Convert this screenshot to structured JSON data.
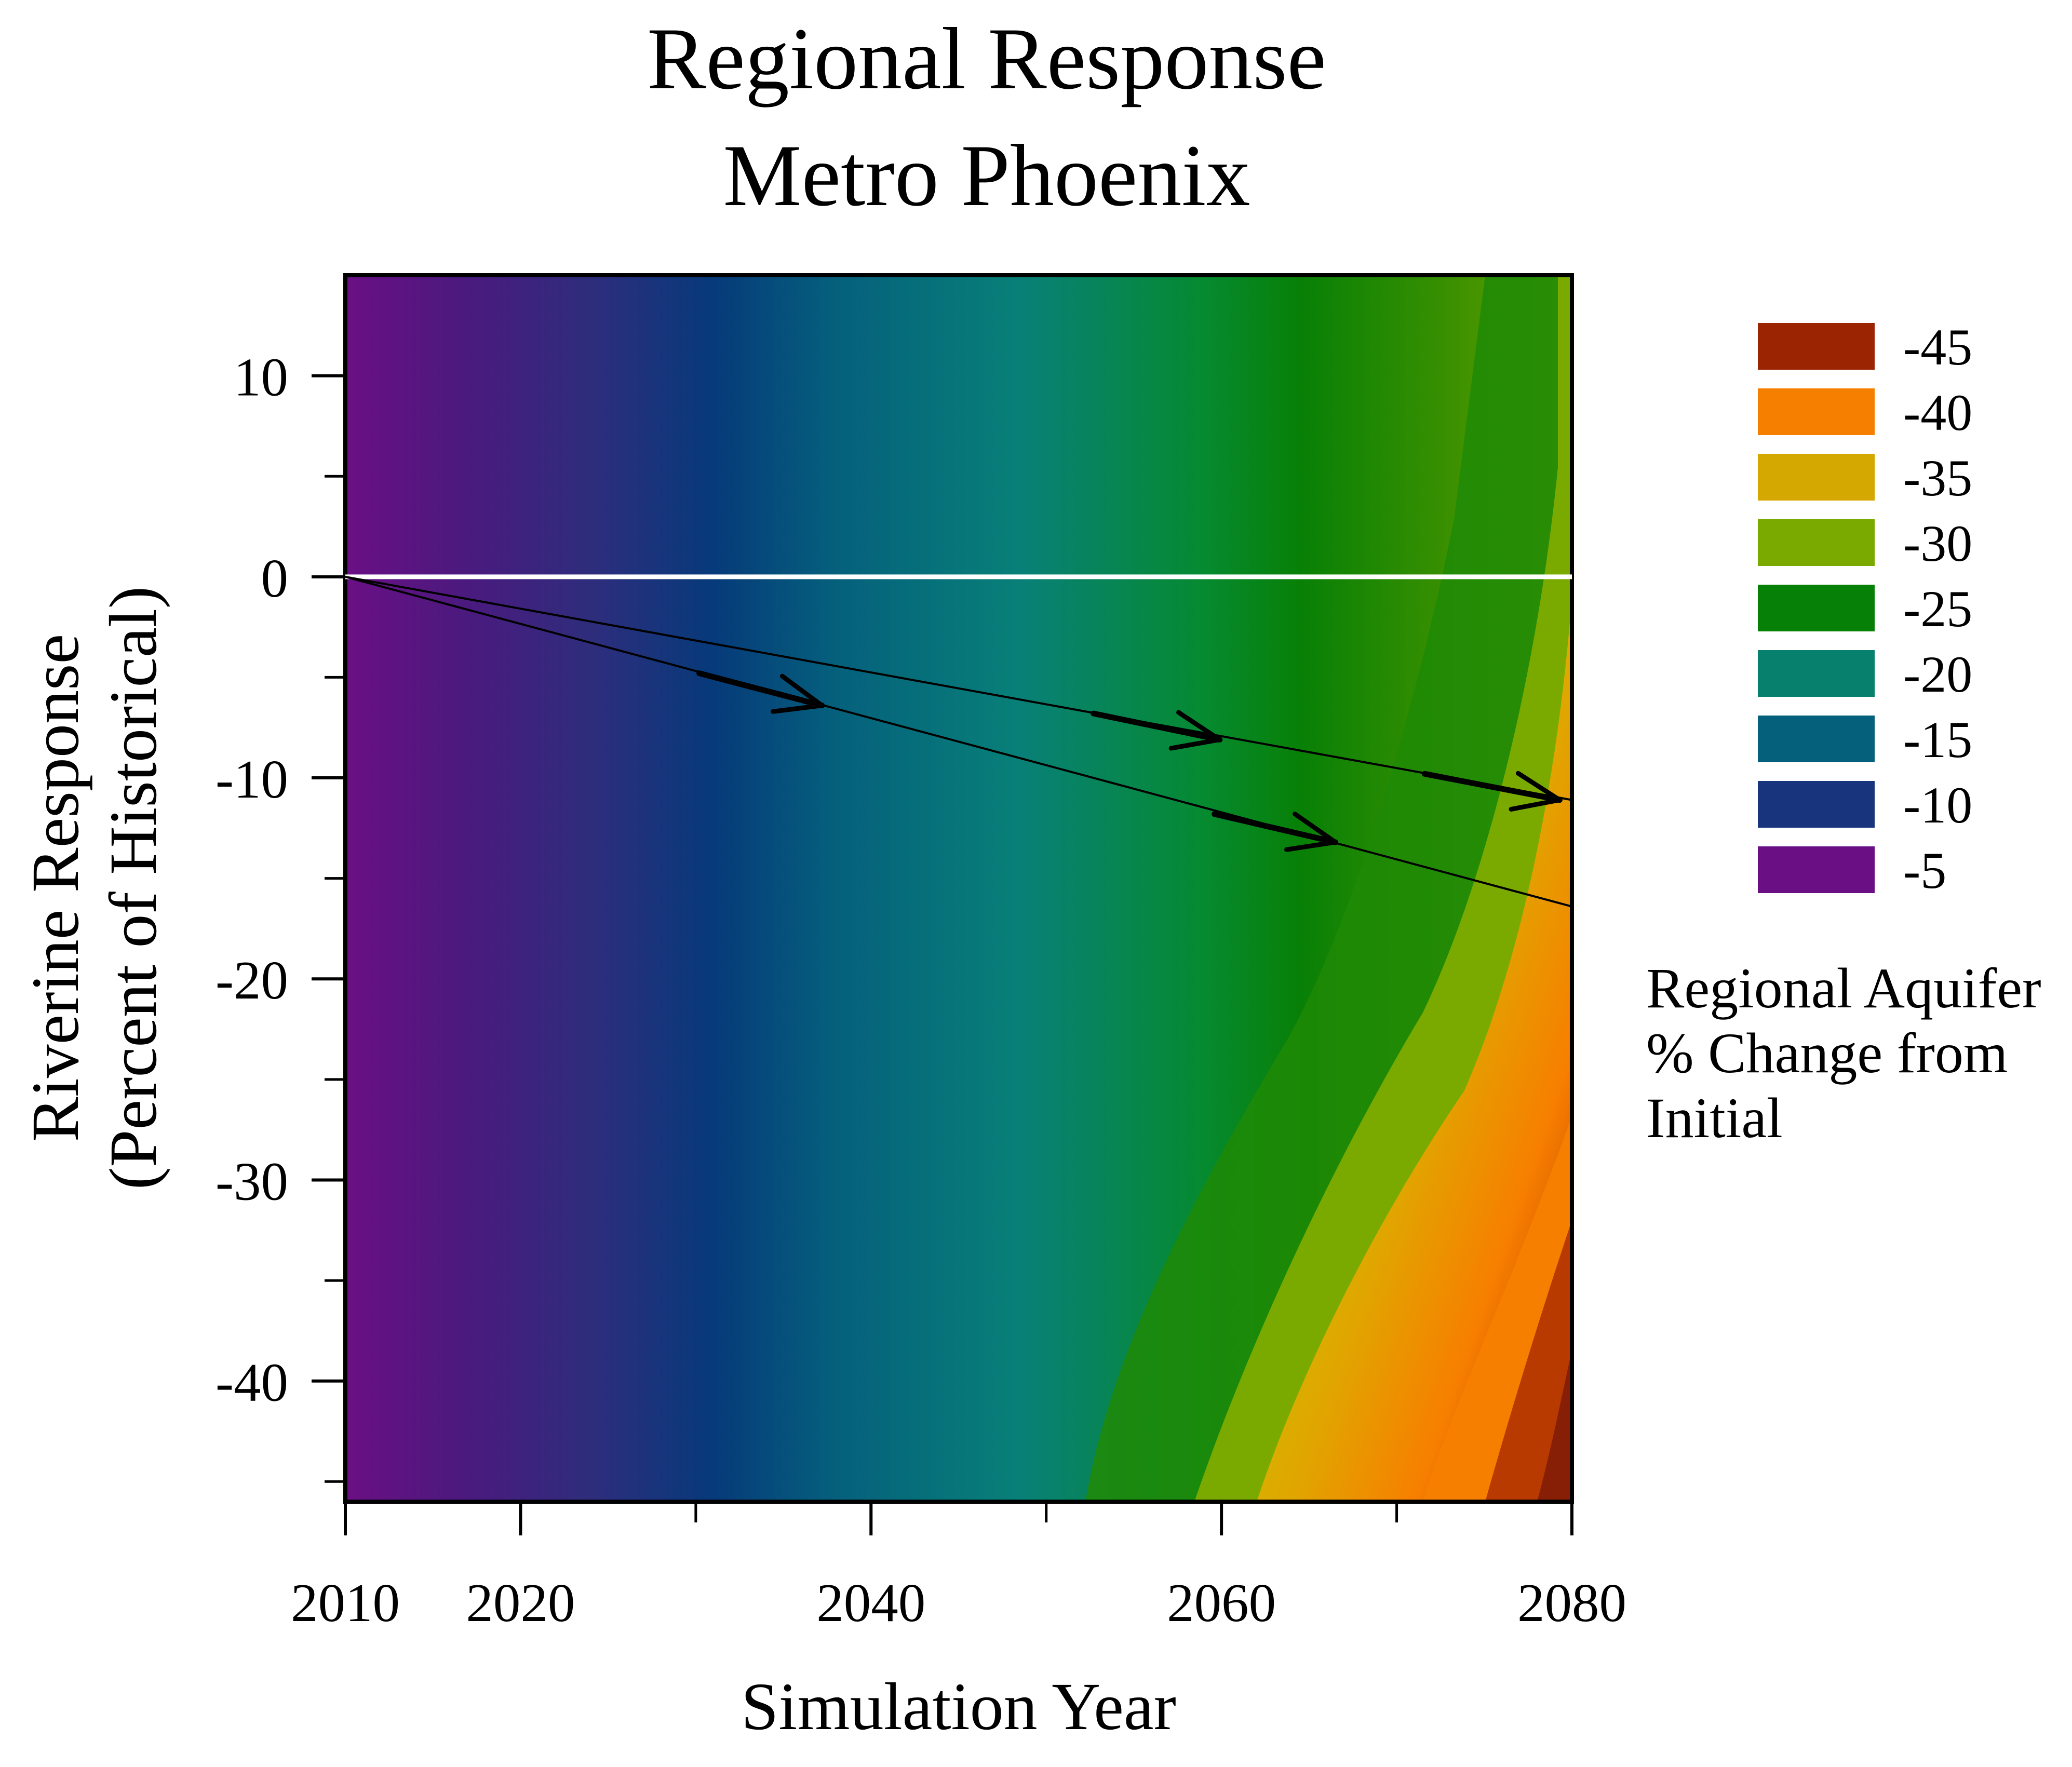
{
  "title_line1": "Regional Response",
  "title_line2": "Metro Phoenix",
  "chart_data": {
    "type": "contour",
    "xlabel": "Simulation Year",
    "ylabel_line1": "Riverine Response",
    "ylabel_line2": "(Percent of Historical)",
    "xlim": [
      2010,
      2080
    ],
    "ylim": [
      -46,
      15
    ],
    "x_tick_labels": [
      2010,
      2020,
      2040,
      2060,
      2080
    ],
    "x_minor_ticks": [
      2030,
      2050,
      2070
    ],
    "y_tick_labels": [
      10,
      0,
      -10,
      -20,
      -30,
      -40
    ],
    "y_minor_ticks": [
      5,
      -5,
      -15,
      -25,
      -35,
      -45
    ],
    "grid": false,
    "colorbar": {
      "title_lines": [
        "Regional Aquifer",
        "% Change from",
        "Initial"
      ],
      "levels": [
        {
          "label": "-45",
          "color": "#9b2403"
        },
        {
          "label": "-40",
          "color": "#f77f00"
        },
        {
          "label": "-35",
          "color": "#d4a800"
        },
        {
          "label": "-30",
          "color": "#7aaa00"
        },
        {
          "label": "-25",
          "color": "#068006"
        },
        {
          "label": "-20",
          "color": "#08806e"
        },
        {
          "label": "-15",
          "color": "#05607c"
        },
        {
          "label": "-10",
          "color": "#18347c"
        },
        {
          "label": "-5",
          "color": "#6a0f84"
        }
      ]
    },
    "series": [
      {
        "type": "horizontal_line",
        "y": 0,
        "color": "#ffffff"
      },
      {
        "type": "line",
        "x": [
          2010,
          2080
        ],
        "y": [
          0,
          -11.1
        ],
        "color": "#000000"
      },
      {
        "type": "line",
        "x": [
          2010,
          2080
        ],
        "y": [
          0,
          -16.4
        ],
        "color": "#000000"
      }
    ],
    "arrows": [
      {
        "x_start": 2030.2,
        "y_start": -4.8,
        "x_end": 2037.2,
        "y_end": -6.4
      },
      {
        "x_start": 2052.7,
        "y_start": -6.8,
        "x_end": 2059.9,
        "y_end": -8.1
      },
      {
        "x_start": 2071.6,
        "y_start": -9.8,
        "x_end": 2079.3,
        "y_end": -11.1
      },
      {
        "x_start": 2059.6,
        "y_start": -11.8,
        "x_end": 2066.5,
        "y_end": -13.2
      }
    ]
  }
}
